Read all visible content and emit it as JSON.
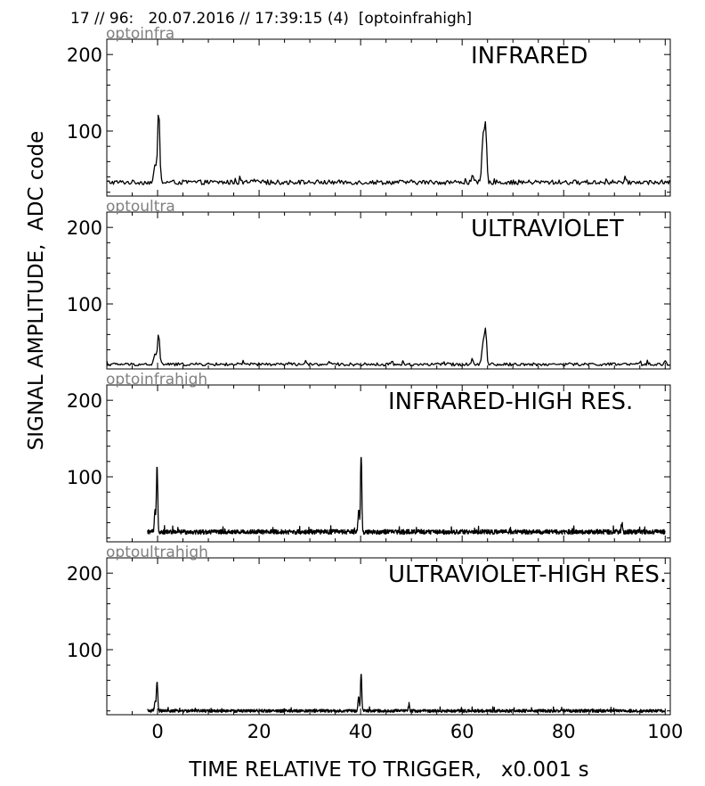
{
  "header": "17 // 96:   20.07.2016 // 17:39:15 (4)  [optoinfrahigh]",
  "ylabel": "SIGNAL AMPLITUDE,  ADC code",
  "xlabel": "TIME RELATIVE TO TRIGGER,   x0.001 s",
  "colors": {
    "trace": "#000000",
    "panel_name": "#808080",
    "frame": "#000000"
  },
  "chart_data": [
    {
      "type": "line",
      "name": "optoinfra",
      "title": "INFRARED",
      "xlim": [
        -10,
        101
      ],
      "ylim": [
        15,
        220
      ],
      "xticks": [
        0,
        20,
        40,
        60,
        80,
        100
      ],
      "yticks": [
        100,
        200
      ],
      "show_xtick_labels": false,
      "sampling": "low",
      "x_range": [
        -10,
        101
      ],
      "baseline": 33,
      "noise": 3,
      "peaks": [
        {
          "x": 0.2,
          "y": 126
        },
        {
          "x": -0.5,
          "y": 55
        },
        {
          "x": 64.1,
          "y": 90
        },
        {
          "x": 64.6,
          "y": 111
        },
        {
          "x": 62,
          "y": 40
        }
      ]
    },
    {
      "type": "line",
      "name": "optoultra",
      "title": "ULTRAVIOLET",
      "xlim": [
        -10,
        101
      ],
      "ylim": [
        15,
        220
      ],
      "xticks": [
        0,
        20,
        40,
        60,
        80,
        100
      ],
      "yticks": [
        100,
        200
      ],
      "show_xtick_labels": false,
      "sampling": "low",
      "x_range": [
        -10,
        101
      ],
      "baseline": 21,
      "noise": 2,
      "peaks": [
        {
          "x": 0.2,
          "y": 61
        },
        {
          "x": -0.5,
          "y": 35
        },
        {
          "x": 64.1,
          "y": 50
        },
        {
          "x": 64.6,
          "y": 66
        },
        {
          "x": 62,
          "y": 28
        }
      ]
    },
    {
      "type": "line",
      "name": "optoinfrahigh",
      "title": "INFRARED-HIGH RES.",
      "xlim": [
        -10,
        101
      ],
      "ylim": [
        15,
        220
      ],
      "xticks": [
        0,
        20,
        40,
        60,
        80,
        100
      ],
      "yticks": [
        100,
        200
      ],
      "show_xtick_labels": false,
      "sampling": "high",
      "x_range": [
        -2,
        100
      ],
      "baseline": 28,
      "noise": 3,
      "peaks": [
        {
          "x": -0.1,
          "y": 116
        },
        {
          "x": -0.5,
          "y": 55
        },
        {
          "x": 39.6,
          "y": 55
        },
        {
          "x": 40.1,
          "y": 129
        },
        {
          "x": 91.5,
          "y": 38
        }
      ]
    },
    {
      "type": "line",
      "name": "optoultrahigh",
      "title": "ULTRAVIOLET-HIGH RES.",
      "xlim": [
        -10,
        101
      ],
      "ylim": [
        15,
        220
      ],
      "xticks": [
        0,
        20,
        40,
        60,
        80,
        100
      ],
      "yticks": [
        100,
        200
      ],
      "show_xtick_labels": true,
      "sampling": "high",
      "x_range": [
        -2,
        100
      ],
      "baseline": 20,
      "noise": 2,
      "peaks": [
        {
          "x": -0.1,
          "y": 58
        },
        {
          "x": -0.5,
          "y": 32
        },
        {
          "x": 39.6,
          "y": 38
        },
        {
          "x": 40.1,
          "y": 68
        },
        {
          "x": 49.5,
          "y": 28
        }
      ]
    }
  ]
}
